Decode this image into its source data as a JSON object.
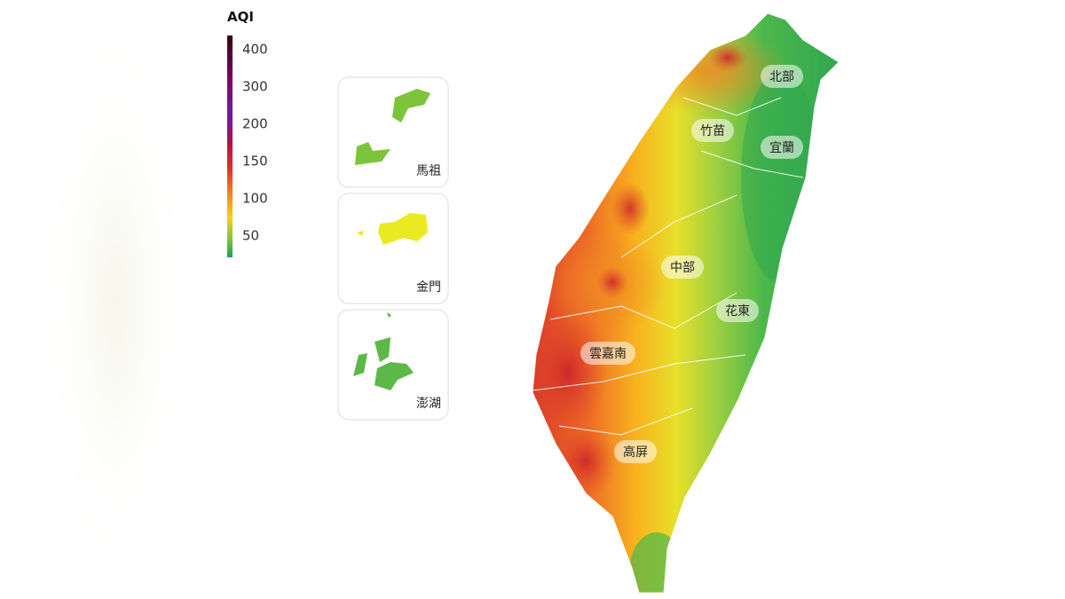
{
  "legend": {
    "title": "AQI",
    "ticks": [
      400,
      300,
      200,
      150,
      100,
      50
    ]
  },
  "regions": [
    "北部",
    "竹苗",
    "宜蘭",
    "中部",
    "花東",
    "雲嘉南",
    "高屏"
  ],
  "insets": [
    "馬祖",
    "金門",
    "澎湖"
  ]
}
